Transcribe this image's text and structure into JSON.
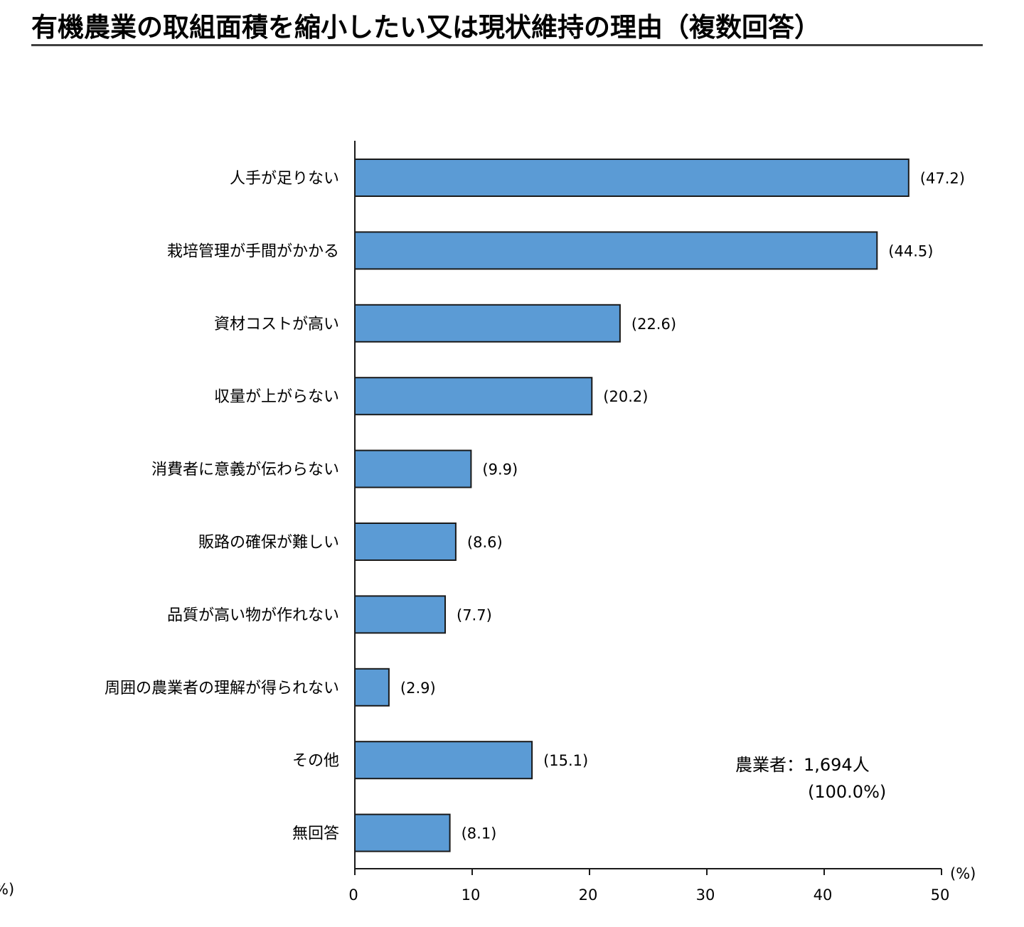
{
  "chart_data": {
    "type": "bar",
    "orientation": "horizontal",
    "title": "有機農業の取組面積を縮小したい又は現状維持の理由（複数回答）",
    "categories": [
      "人手が足りない",
      "栽培管理が手間がかかる",
      "資材コストが高い",
      "収量が上がらない",
      "消費者に意義が伝わらない",
      "販路の確保が難しい",
      "品質が高い物が作れない",
      "周囲の農業者の理解が得られない",
      "その他",
      "無回答"
    ],
    "values": [
      47.2,
      44.5,
      22.6,
      20.2,
      9.9,
      8.6,
      7.7,
      2.9,
      15.1,
      8.1
    ],
    "value_labels": [
      "(47.2)",
      "(44.5)",
      "(22.6)",
      "(20.2)",
      "(9.9)",
      "(8.6)",
      "(7.7)",
      "(2.9)",
      "(15.1)",
      "(8.1)"
    ],
    "xlim": [
      0,
      50
    ],
    "xticks": [
      0,
      10,
      20,
      30,
      40,
      50
    ],
    "xunit": "(%)",
    "grid": false,
    "bar_color": "#5b9bd5",
    "bar_border_color": "#1a1a1a",
    "note": {
      "line1": "農業者：1,694人",
      "line2": "(100.0%)"
    },
    "edge_fragment": "%)"
  }
}
